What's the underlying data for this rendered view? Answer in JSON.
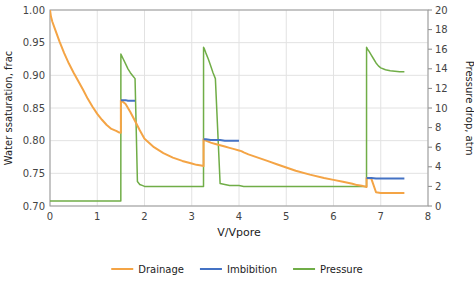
{
  "chart_data": {
    "type": "line",
    "xlabel": "V/Vpore",
    "ylabel": "Water ssaturation, frac",
    "y2label": "Pressure drop, atm",
    "xlim": [
      0,
      8
    ],
    "ylim": [
      0.7,
      1.0
    ],
    "y2lim": [
      0,
      20
    ],
    "xticks": [
      0,
      1,
      2,
      3,
      4,
      5,
      6,
      7,
      8
    ],
    "yticks": [
      {
        "value": 0.7,
        "label": "0.70"
      },
      {
        "value": 0.75,
        "label": "0.75"
      },
      {
        "value": 0.8,
        "label": "0.80"
      },
      {
        "value": 0.85,
        "label": "0.85"
      },
      {
        "value": 0.9,
        "label": "0.90"
      },
      {
        "value": 0.95,
        "label": "0.95"
      },
      {
        "value": 1.0,
        "label": "1.00"
      }
    ],
    "y2ticks": [
      0,
      2,
      4,
      6,
      8,
      10,
      12,
      14,
      16,
      18,
      20
    ],
    "grid": true,
    "legend": "bottom",
    "series": [
      {
        "name": "Drainage",
        "color": "#f4a445",
        "x": [
          0.0,
          0.02,
          0.05,
          0.1,
          0.15,
          0.2,
          0.3,
          0.4,
          0.5,
          0.6,
          0.7,
          0.8,
          0.9,
          1.0,
          1.1,
          1.2,
          1.3,
          1.4,
          1.45,
          1.5,
          1.5,
          1.6,
          1.7,
          1.8,
          1.9,
          2.0,
          2.2,
          2.4,
          2.6,
          2.8,
          3.0,
          3.1,
          3.2,
          3.25,
          3.25,
          3.3,
          3.4,
          3.5,
          3.6,
          3.7,
          3.8,
          3.9,
          4.0,
          4.05,
          4.1,
          4.2,
          4.4,
          4.6,
          4.8,
          5.0,
          5.2,
          5.5,
          5.8,
          6.0,
          6.2,
          6.4,
          6.5,
          6.6,
          6.65,
          6.7,
          6.7,
          6.8,
          6.9,
          7.0,
          7.1,
          7.2,
          7.3,
          7.4,
          7.5
        ],
        "values": [
          1.0,
          0.99,
          0.982,
          0.972,
          0.962,
          0.952,
          0.934,
          0.918,
          0.904,
          0.891,
          0.878,
          0.864,
          0.852,
          0.841,
          0.832,
          0.824,
          0.818,
          0.815,
          0.813,
          0.812,
          0.862,
          0.856,
          0.844,
          0.83,
          0.816,
          0.803,
          0.79,
          0.781,
          0.774,
          0.769,
          0.765,
          0.763,
          0.762,
          0.761,
          0.802,
          0.8,
          0.797,
          0.795,
          0.793,
          0.791,
          0.789,
          0.787,
          0.785,
          0.784,
          0.782,
          0.779,
          0.774,
          0.769,
          0.764,
          0.759,
          0.754,
          0.748,
          0.743,
          0.74,
          0.737,
          0.734,
          0.732,
          0.731,
          0.73,
          0.729,
          0.743,
          0.742,
          0.721,
          0.72,
          0.72,
          0.72,
          0.72,
          0.72,
          0.72
        ]
      },
      {
        "name": "Imbibition",
        "color": "#4472c4",
        "x": [
          1.5,
          1.55,
          1.6,
          1.65,
          1.7,
          1.75,
          1.8,
          null,
          3.25,
          3.3,
          3.4,
          3.5,
          3.6,
          3.7,
          3.8,
          3.9,
          4.0,
          null,
          6.7,
          6.8,
          6.9,
          7.0,
          7.1,
          7.2,
          7.3,
          7.4,
          7.5
        ],
        "values": [
          0.862,
          0.862,
          0.862,
          0.861,
          0.861,
          0.861,
          0.861,
          null,
          0.802,
          0.802,
          0.801,
          0.801,
          0.801,
          0.8,
          0.8,
          0.8,
          0.8,
          null,
          0.743,
          0.743,
          0.742,
          0.742,
          0.742,
          0.742,
          0.742,
          0.742,
          0.742
        ]
      },
      {
        "name": "Pressure",
        "color": "#70ad47",
        "axis": "y2",
        "x": [
          0.0,
          0.3,
          0.6,
          0.9,
          1.2,
          1.45,
          1.499,
          1.5,
          1.52,
          1.55,
          1.6,
          1.65,
          1.7,
          1.75,
          1.8,
          1.85,
          1.9,
          1.95,
          2.0,
          2.2,
          2.6,
          3.0,
          3.2,
          3.249,
          3.25,
          3.27,
          3.3,
          3.35,
          3.4,
          3.45,
          3.5,
          3.6,
          3.7,
          3.8,
          3.9,
          4.0,
          4.1,
          4.5,
          5.0,
          5.5,
          6.0,
          6.5,
          6.699,
          6.7,
          6.72,
          6.75,
          6.8,
          6.85,
          6.9,
          6.95,
          7.0,
          7.1,
          7.2,
          7.3,
          7.4,
          7.5
        ],
        "values": [
          0.5,
          0.5,
          0.5,
          0.5,
          0.5,
          0.5,
          0.5,
          15.5,
          15.3,
          15.0,
          14.5,
          14.0,
          13.6,
          13.3,
          13.0,
          2.5,
          2.2,
          2.1,
          2.0,
          2.0,
          2.0,
          2.0,
          2.0,
          2.0,
          16.2,
          16.0,
          15.6,
          15.0,
          14.3,
          13.6,
          13.0,
          2.3,
          2.2,
          2.1,
          2.1,
          2.1,
          2.0,
          2.0,
          2.0,
          2.0,
          2.0,
          2.0,
          2.0,
          16.2,
          16.0,
          15.8,
          15.4,
          15.0,
          14.6,
          14.3,
          14.1,
          13.9,
          13.8,
          13.75,
          13.7,
          13.7
        ]
      }
    ]
  }
}
